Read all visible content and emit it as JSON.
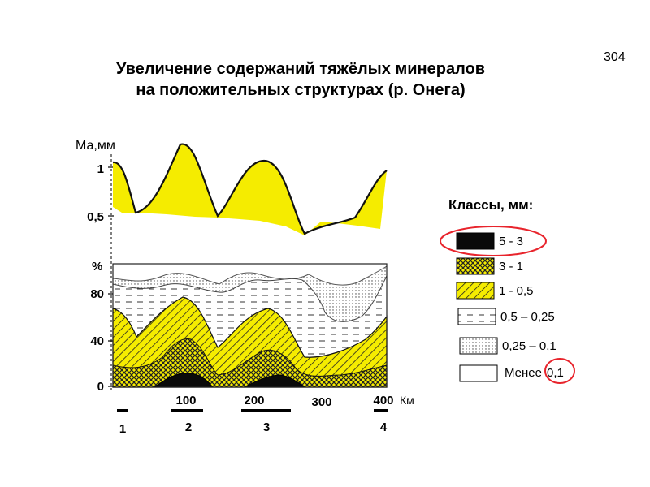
{
  "page_number": "304",
  "title": {
    "line1": "Увеличение содержаний тяжёлых минералов",
    "line2": "на положительных структурах (р. Онега)"
  },
  "top_chart": {
    "y_label": "Ма,мм",
    "y_ticks": [
      "1",
      "0,5"
    ],
    "fill_color": "#f5ec00"
  },
  "bottom_chart": {
    "y_label": "%",
    "y_ticks": [
      "80",
      "40",
      "0"
    ],
    "x_ticks": [
      "100",
      "200",
      "300",
      "400"
    ],
    "x_unit": "Км",
    "structures": [
      "1",
      "2",
      "3",
      "4"
    ]
  },
  "legend": {
    "title": "Классы, мм:",
    "items": [
      {
        "label": "5 - 3",
        "pattern": "black",
        "highlighted": true
      },
      {
        "label": "3 - 1",
        "pattern": "crosshatch-yellow",
        "highlighted": false
      },
      {
        "label": "1 - 0,5",
        "pattern": "diagonal-yellow",
        "highlighted": false
      },
      {
        "label": "0,5 – 0,25",
        "pattern": "dashes",
        "highlighted": false
      },
      {
        "label": "0,25 – 0,1",
        "pattern": "dots",
        "highlighted": false
      },
      {
        "label_prefix": "Менее",
        "label_value": "0,1",
        "pattern": "blank",
        "highlighted": true
      }
    ],
    "highlight_color": "#e8242c"
  }
}
